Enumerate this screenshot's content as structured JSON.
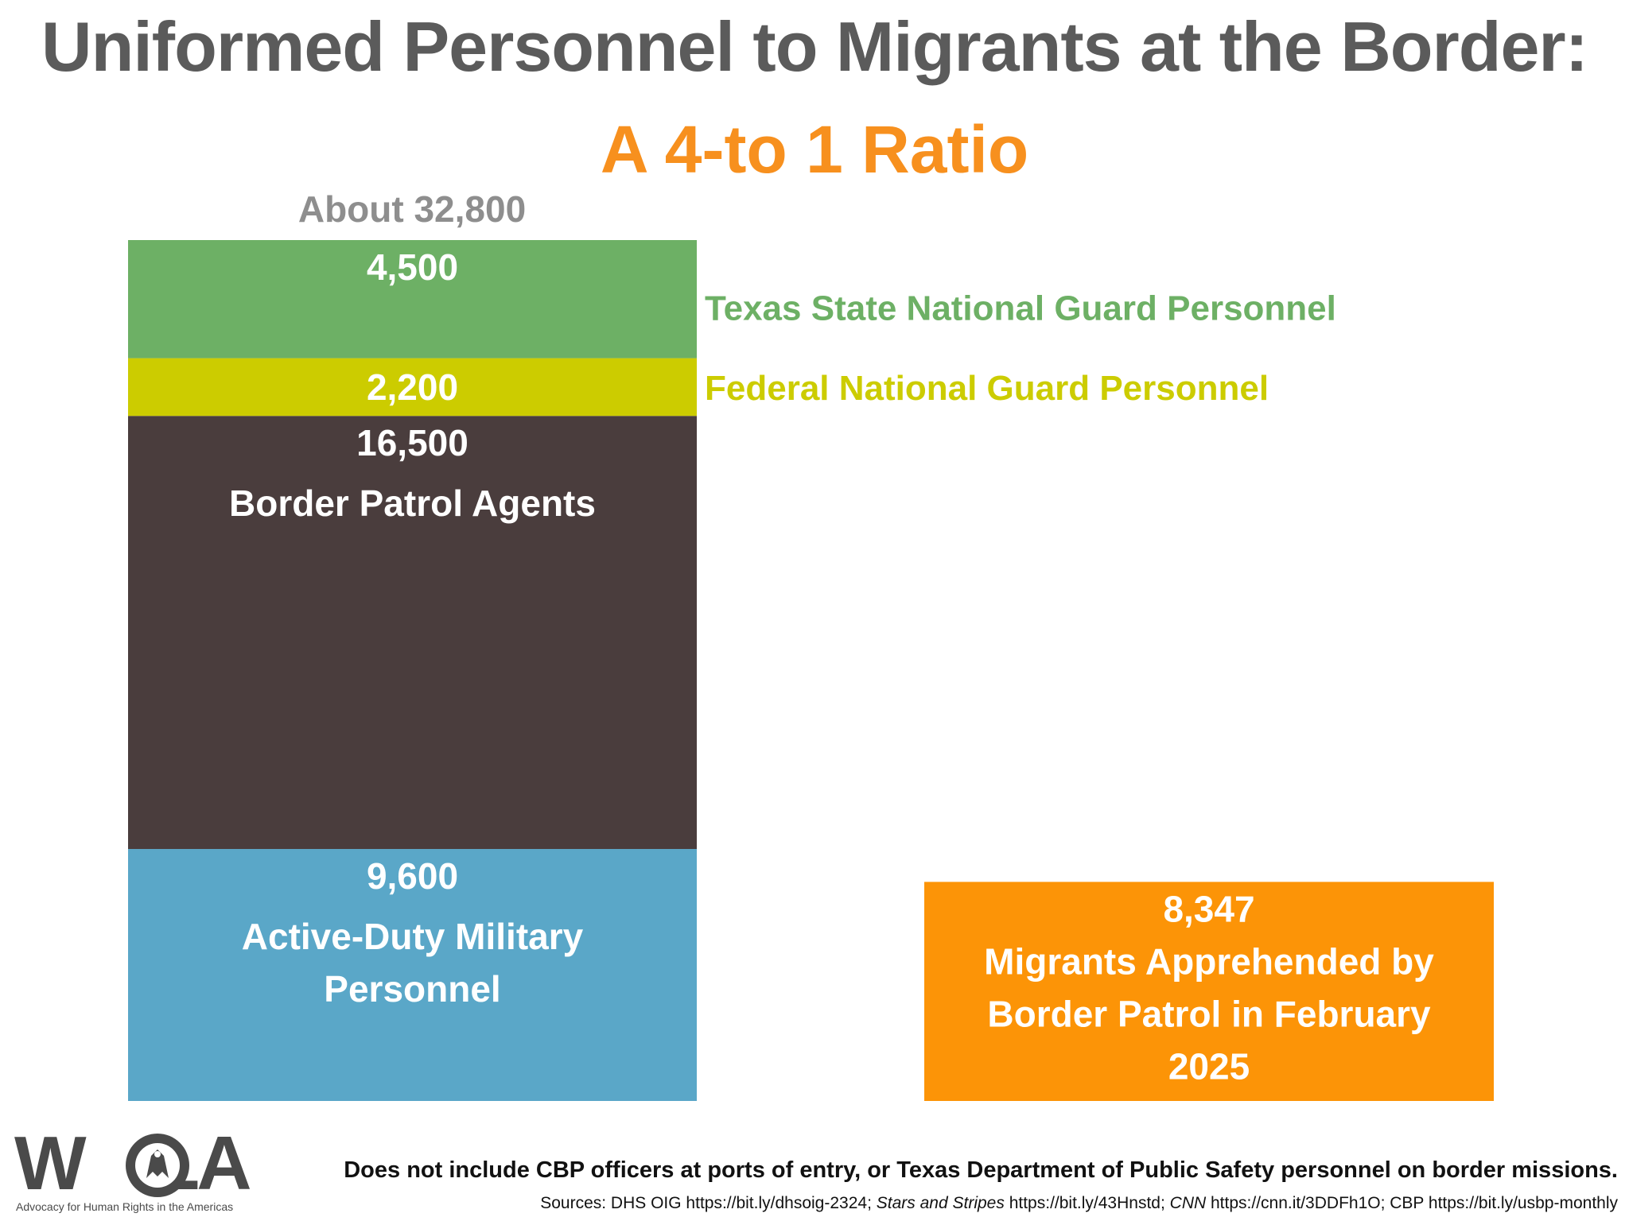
{
  "title": {
    "line1": "Uniformed Personnel to Migrants at the Border:",
    "line2": "A 4-to 1 Ratio"
  },
  "colors": {
    "title_gray": "#5b5b5b",
    "title_orange": "#f7901e",
    "texas_guard": "#6db065",
    "federal_guard": "#cccc00",
    "border_patrol": "#4a3d3d",
    "active_duty": "#5aa7c8",
    "migrants": "#fc9407",
    "total_label": "#8e8e8e"
  },
  "chart_data": {
    "type": "bar",
    "stacked": true,
    "total_label": "About 32,800",
    "bars": [
      {
        "name": "uniformed-personnel",
        "segments": [
          {
            "key": "active_duty",
            "value": 9600,
            "value_label": "9,600",
            "label_lines": [
              "Active-Duty Military",
              "Personnel"
            ],
            "label_position": "inside",
            "color": "#5aa7c8"
          },
          {
            "key": "border_patrol",
            "value": 16500,
            "value_label": "16,500",
            "label_lines": [
              "Border Patrol Agents"
            ],
            "label_position": "inside",
            "color": "#4a3d3d"
          },
          {
            "key": "federal_guard",
            "value": 2200,
            "value_label": "2,200",
            "label_lines": [
              "Federal National Guard Personnel"
            ],
            "label_position": "right",
            "color": "#cccc00"
          },
          {
            "key": "texas_guard",
            "value": 4500,
            "value_label": "4,500",
            "label_lines": [
              "Texas State National Guard Personnel"
            ],
            "label_position": "right",
            "color": "#6db065"
          }
        ]
      },
      {
        "name": "migrants",
        "segments": [
          {
            "key": "migrants",
            "value": 8347,
            "value_label": "8,347",
            "label_lines": [
              "Migrants Apprehended by",
              "Border Patrol in February",
              "2025"
            ],
            "label_position": "inside",
            "color": "#fc9407"
          }
        ]
      }
    ],
    "ylim": [
      0,
      32800
    ],
    "grid": false,
    "legend": "none",
    "xlabel": "",
    "ylabel": ""
  },
  "footer": {
    "logo_word_left": "W",
    "logo_word_right": "LA",
    "logo_tagline": "Advocacy for Human Rights in the Americas",
    "note": "Does not include CBP officers at ports of entry, or Texas Department of Public Safety personnel on border missions.",
    "sources": {
      "prefix": "Sources: DHS OIG https://bit.ly/dhsoig-2324;",
      "stars": "Stars and Stripes",
      "stars_url": "https://bit.ly/43Hnstd;",
      "cnn": "CNN",
      "cnn_url": "https://cnn.it/3DDFh1O; CBP https://bit.ly/usbp-monthly"
    }
  }
}
